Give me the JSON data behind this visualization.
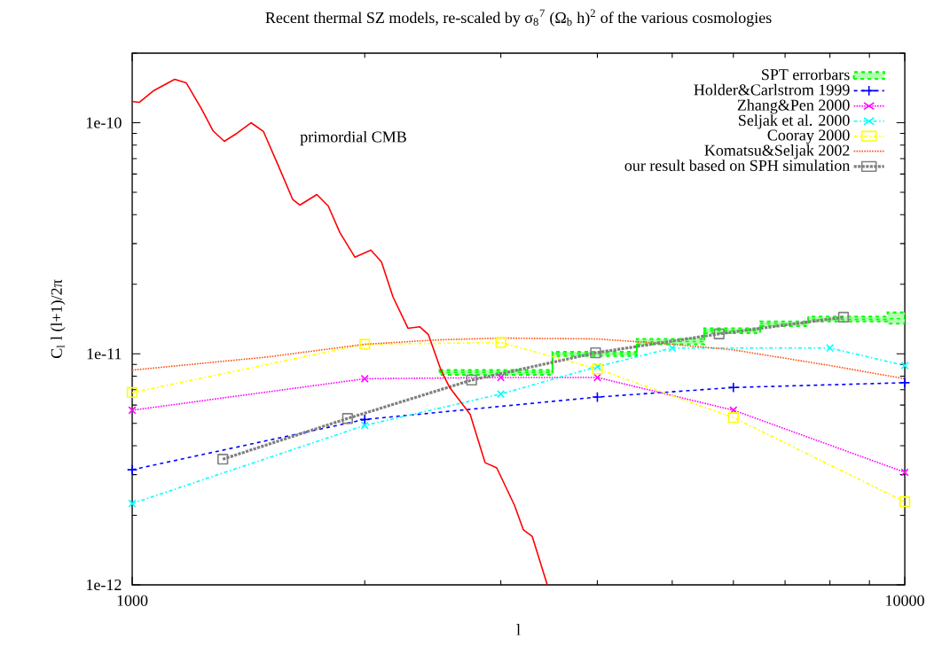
{
  "chart_data": {
    "type": "line",
    "title": "Recent thermal SZ models, re-scaled by σ$_{8}$$^{7}$ (Ω$_{b}$ h)$^{2}$ of the various cosmologies",
    "xlabel": "l",
    "ylabel": "C$_{l}$ l (l+1)/2π",
    "log": "xy",
    "xlim": [
      1000,
      10000
    ],
    "ylim": [
      1e-12,
      2e-10
    ],
    "xticks": [
      {
        "value": 1000,
        "label": "1000"
      },
      {
        "value": 10000,
        "label": "10000"
      }
    ],
    "yticks": [
      {
        "value": 1e-12,
        "label": "1e-12"
      },
      {
        "value": 1e-11,
        "label": "1e-11"
      },
      {
        "value": 1e-10,
        "label": "1e-10"
      }
    ],
    "legend": "top right",
    "annotations": [
      "primordial CMB"
    ],
    "series": [
      {
        "name": "SPT errorbars",
        "color": "#00ff00",
        "line_style": "dashed",
        "marker": "none",
        "x": [
          2500,
          3500,
          3500,
          4500,
          4500,
          5500,
          5500,
          6500,
          6500,
          7500,
          7500,
          9500,
          9500,
          10000
        ],
        "values": [
          8.3e-12,
          8.3e-12,
          1e-11,
          1e-11,
          1.13e-11,
          1.13e-11,
          1.26e-11,
          1.26e-11,
          1.35e-11,
          1.35e-11,
          1.41e-11,
          1.41e-11,
          1.42e-11,
          1.42e-11
        ],
        "lower": [
          8.1e-12,
          8.1e-12,
          9.8e-12,
          9.8e-12,
          1.1e-11,
          1.1e-11,
          1.23e-11,
          1.23e-11,
          1.32e-11,
          1.32e-11,
          1.38e-11,
          1.38e-11,
          1.35e-11,
          1.35e-11
        ],
        "upper": [
          8.5e-12,
          8.5e-12,
          1.02e-11,
          1.02e-11,
          1.16e-11,
          1.16e-11,
          1.29e-11,
          1.29e-11,
          1.38e-11,
          1.38e-11,
          1.45e-11,
          1.45e-11,
          1.51e-11,
          1.51e-11
        ]
      },
      {
        "name": "Holder&Carlstrom 1999",
        "color": "#0000ff",
        "line_style": "dashed",
        "marker": "plus",
        "x": [
          1000,
          2000,
          4000,
          6000,
          10000
        ],
        "values": [
          3.15e-12,
          5.2e-12,
          6.5e-12,
          7.15e-12,
          7.5e-12
        ]
      },
      {
        "name": "Zhang&Pen 2000",
        "color": "#ff00ff",
        "line_style": "dotted",
        "marker": "cross",
        "x": [
          1000,
          2000,
          3000,
          4000,
          6000,
          10000
        ],
        "values": [
          5.7e-12,
          7.8e-12,
          7.9e-12,
          7.9e-12,
          5.7e-12,
          3.07e-12
        ]
      },
      {
        "name": "Seljak et al. 2000",
        "color": "#00ffff",
        "line_style": "dashdotted",
        "marker": "cross",
        "x": [
          1000,
          2000,
          3000,
          4000,
          5000,
          8000,
          10000
        ],
        "values": [
          2.25e-12,
          4.9e-12,
          6.7e-12,
          8.8e-12,
          1.06e-11,
          1.06e-11,
          8.9e-12
        ]
      },
      {
        "name": "Cooray 2000",
        "color": "#ffff00",
        "line_style": "dashdotted",
        "marker": "square",
        "x": [
          1000,
          2000,
          3000,
          4000,
          6000,
          10000
        ],
        "values": [
          6.8e-12,
          1.1e-11,
          1.12e-11,
          8.6e-12,
          5.3e-12,
          2.29e-12
        ]
      },
      {
        "name": "Komatsu&Seljak 2002",
        "color": "#ff5010",
        "line_style": "dotted",
        "marker": "none",
        "x": [
          1000,
          1500,
          2000,
          2500,
          3000,
          4000,
          5000,
          6000,
          8000,
          10000
        ],
        "values": [
          8.5e-12,
          9.7e-12,
          1.1e-11,
          1.15e-11,
          1.17e-11,
          1.16e-11,
          1.1e-11,
          1.04e-11,
          8.9e-12,
          7.8e-12
        ]
      },
      {
        "name": "our result based on SPH simulation",
        "color": "#808080",
        "line_style": "dotted",
        "marker": "square",
        "x": [
          1310,
          1900,
          2750,
          3980,
          5750,
          8330
        ],
        "values": [
          3.5e-12,
          5.25e-12,
          7.7e-12,
          1.01e-11,
          1.22e-11,
          1.44e-11
        ]
      },
      {
        "color": "#ff0000",
        "line_style": "solid",
        "marker": "none",
        "x": [
          1000,
          1021,
          1065,
          1135,
          1175,
          1229,
          1272,
          1316,
          1366,
          1425,
          1479,
          1543,
          1614,
          1648,
          1734,
          1794,
          1857,
          1942,
          2037,
          2102,
          2176,
          2275,
          2355,
          2418,
          2509,
          2576,
          2738,
          2863,
          2964,
          3125,
          3209,
          3295,
          3446
        ],
        "values": [
          1.236e-10,
          1.225e-10,
          1.374e-10,
          1.541e-10,
          1.487e-10,
          1.151e-10,
          9.24e-11,
          8.31e-11,
          9e-11,
          1e-10,
          9.16e-11,
          6.61e-11,
          4.65e-11,
          4.4e-11,
          4.89e-11,
          4.36e-11,
          3.35e-11,
          2.62e-11,
          2.81e-11,
          2.5e-11,
          1.76e-11,
          1.29e-11,
          1.31e-11,
          1.21e-11,
          8.53e-12,
          7.15e-12,
          5.48e-12,
          3.38e-12,
          3.21e-12,
          2.21e-12,
          1.73e-12,
          1.62e-12,
          1e-12
        ]
      }
    ]
  }
}
